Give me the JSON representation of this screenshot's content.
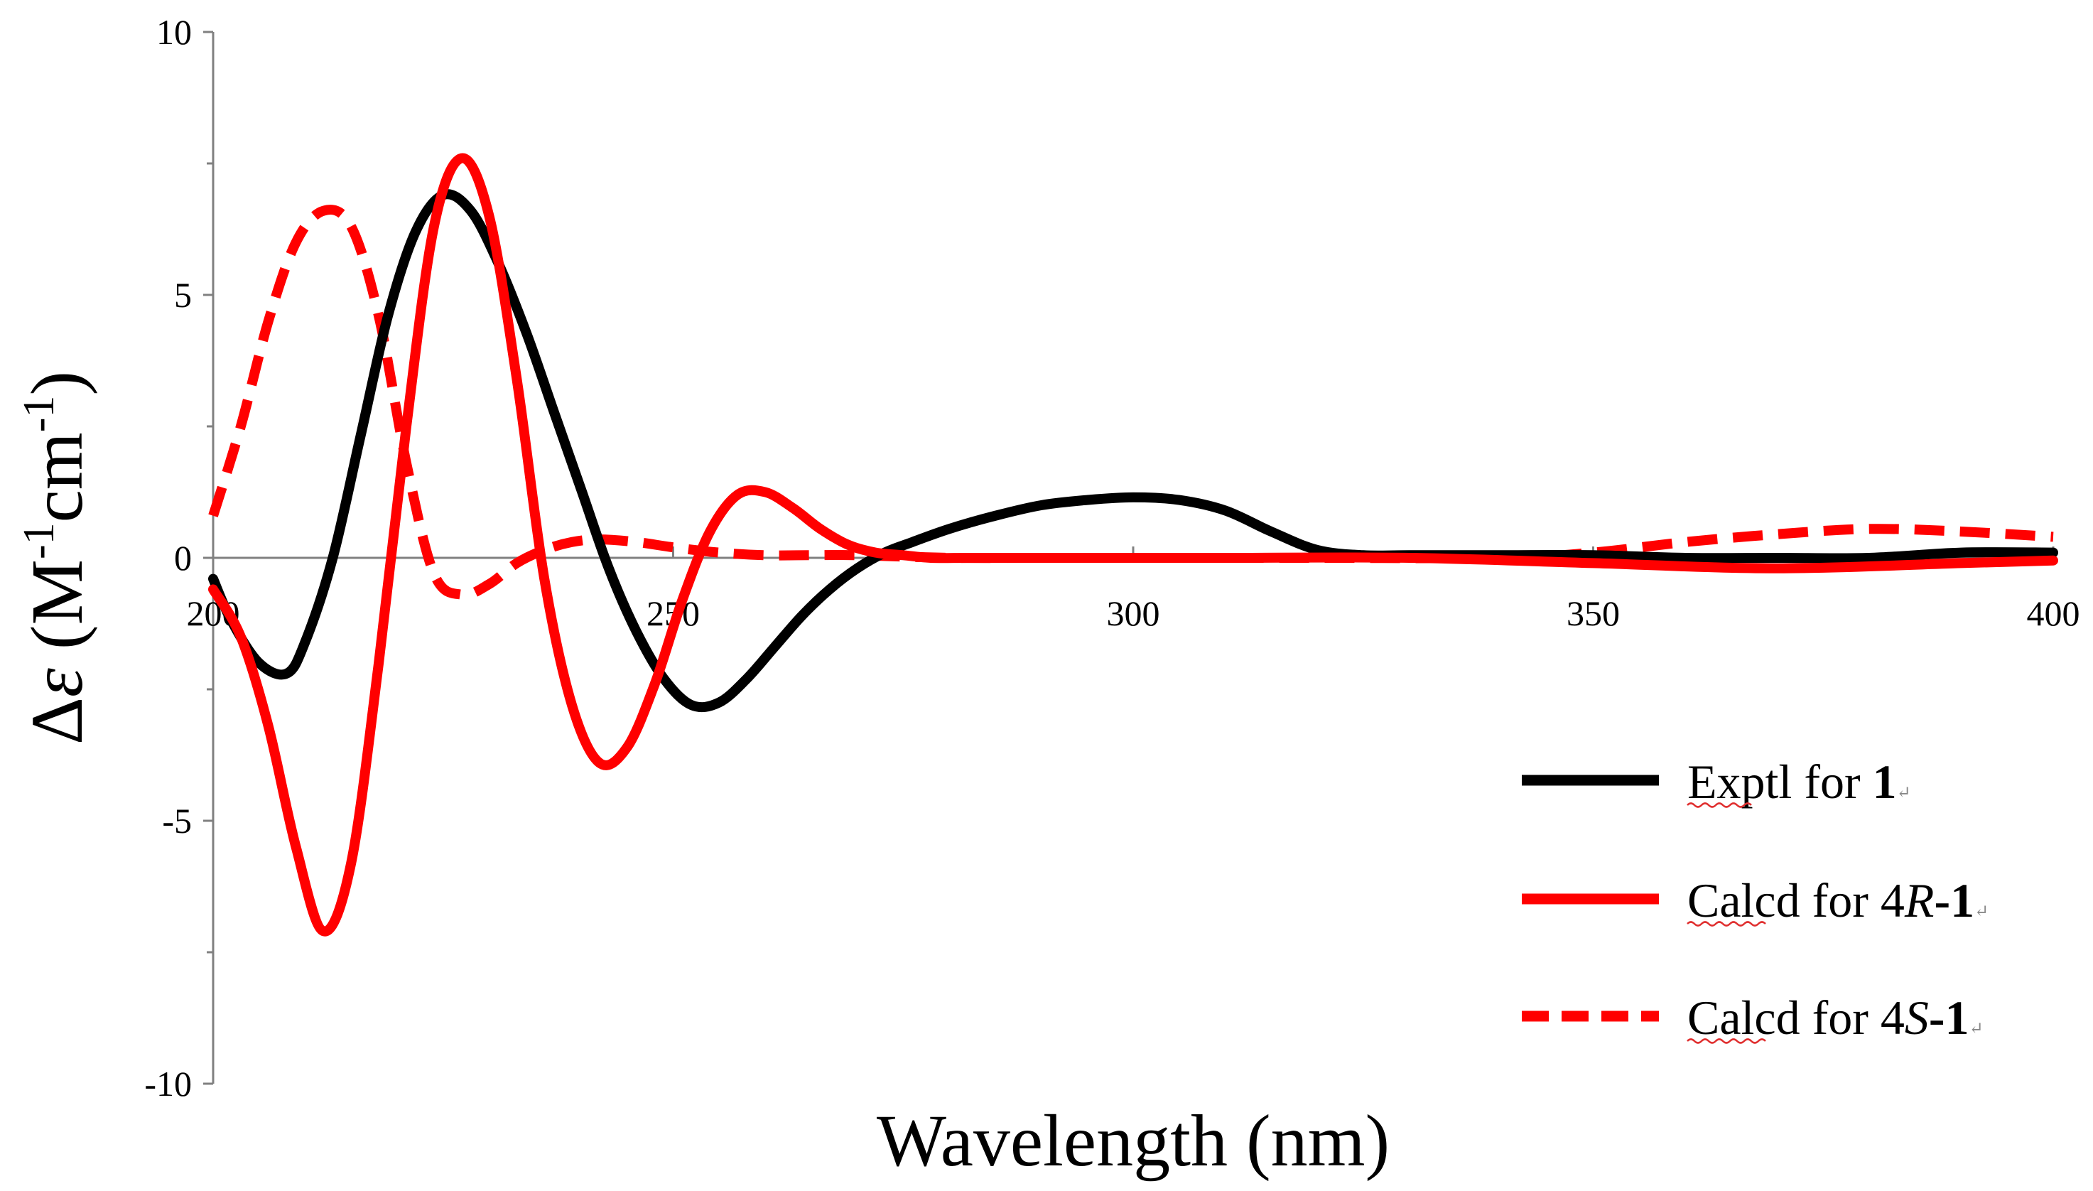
{
  "chart_data": {
    "type": "line",
    "title": "",
    "xlabel": "Wavelength (nm)",
    "ylabel": {
      "delta": "Δ",
      "epsilon": "ε",
      "rest_a": " (M",
      "sup1": "-1",
      "rest_b": "cm",
      "sup2": "-1",
      "rest_c": ")"
    },
    "xlim": [
      200,
      400
    ],
    "ylim": [
      -10,
      10
    ],
    "x_ticks": [
      {
        "value": 200,
        "label": "200"
      },
      {
        "value": 250,
        "label": "250"
      },
      {
        "value": 300,
        "label": "300"
      },
      {
        "value": 350,
        "label": "350"
      },
      {
        "value": 400,
        "label": "400"
      }
    ],
    "y_ticks": [
      {
        "value": 10,
        "label": "10"
      },
      {
        "value": 5,
        "label": "5"
      },
      {
        "value": 0,
        "label": "0"
      },
      {
        "value": -5,
        "label": "-5"
      },
      {
        "value": -10,
        "label": "-10"
      }
    ],
    "legend_position": "bottom-right",
    "series": [
      {
        "name": "Exptl for 1",
        "legend": {
          "text": "Exptl for ",
          "bold": "1",
          "mark": "↵"
        },
        "color": "#000000",
        "style": "solid",
        "x": [
          200,
          202,
          205,
          208,
          210,
          213,
          216,
          219,
          222,
          225,
          228,
          231,
          234,
          237,
          240,
          243,
          246,
          249,
          252,
          255,
          258,
          261,
          264,
          267,
          270,
          273,
          276,
          280,
          285,
          290,
          295,
          300,
          305,
          310,
          315,
          320,
          325,
          330,
          340,
          350,
          360,
          370,
          380,
          390,
          400
        ],
        "y": [
          -0.4,
          -1.2,
          -2.0,
          -2.2,
          -1.6,
          0.0,
          2.3,
          4.6,
          6.2,
          6.9,
          6.6,
          5.6,
          4.3,
          2.8,
          1.3,
          -0.2,
          -1.4,
          -2.3,
          -2.8,
          -2.75,
          -2.3,
          -1.7,
          -1.1,
          -0.6,
          -0.2,
          0.1,
          0.3,
          0.55,
          0.8,
          1.0,
          1.1,
          1.15,
          1.1,
          0.9,
          0.5,
          0.15,
          0.05,
          0.05,
          0.05,
          0.05,
          0.0,
          0.0,
          0.0,
          0.1,
          0.1
        ]
      },
      {
        "name": "Calcd for 4R-1",
        "legend": {
          "text": "Calcd for 4",
          "italic": "R",
          "bold": "-1",
          "mark": "↵"
        },
        "color": "#ff0000",
        "style": "solid",
        "x": [
          200,
          203,
          206,
          209,
          212,
          215,
          218,
          221,
          224,
          227,
          230,
          233,
          236,
          239,
          242,
          245,
          248,
          251,
          254,
          257,
          260,
          263,
          266,
          269,
          272,
          275,
          278,
          282,
          287,
          295,
          310,
          330,
          350,
          370,
          390,
          400
        ],
        "y": [
          -0.6,
          -1.5,
          -3.2,
          -5.5,
          -7.1,
          -5.8,
          -2.0,
          2.5,
          6.3,
          7.6,
          6.5,
          3.4,
          -0.4,
          -2.8,
          -3.9,
          -3.6,
          -2.4,
          -0.8,
          0.5,
          1.2,
          1.25,
          0.95,
          0.55,
          0.25,
          0.1,
          0.05,
          0.0,
          0.0,
          0.0,
          0.0,
          0.0,
          0.0,
          -0.1,
          -0.2,
          -0.1,
          -0.05
        ]
      },
      {
        "name": "Calcd for 4S-1",
        "legend": {
          "text": "Calcd for 4",
          "italic": "S",
          "bold": "-1",
          "mark": "↵"
        },
        "color": "#ff0000",
        "style": "dashed",
        "x": [
          200,
          203,
          206,
          209,
          212,
          215,
          218,
          221,
          224,
          227,
          230,
          233,
          236,
          239,
          242,
          246,
          250,
          255,
          260,
          265,
          270,
          280,
          290,
          300,
          320,
          340,
          350,
          360,
          370,
          380,
          390,
          400
        ],
        "y": [
          0.8,
          2.5,
          4.5,
          6.0,
          6.6,
          6.3,
          4.6,
          1.8,
          -0.3,
          -0.7,
          -0.5,
          -0.1,
          0.15,
          0.3,
          0.35,
          0.3,
          0.2,
          0.1,
          0.05,
          0.05,
          0.05,
          0.0,
          0.0,
          0.0,
          0.0,
          0.0,
          0.1,
          0.3,
          0.45,
          0.55,
          0.5,
          0.4
        ]
      }
    ]
  }
}
